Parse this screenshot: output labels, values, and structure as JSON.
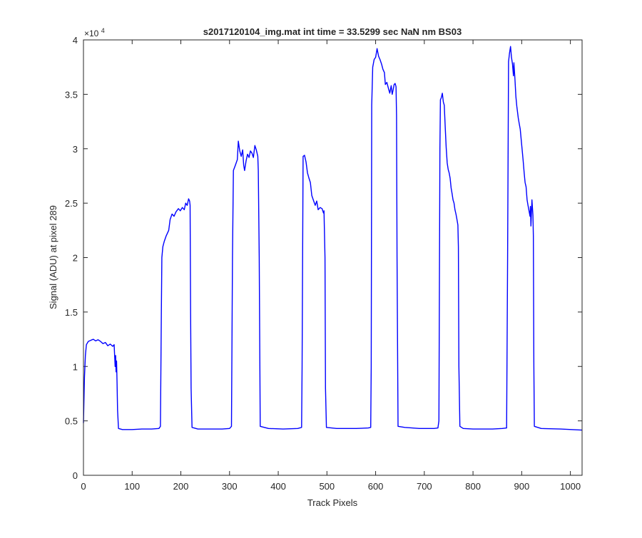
{
  "chart_data": {
    "type": "line",
    "title": "s2017120104_img.mat int time = 33.5299 sec  NaN nm BS03",
    "xlabel": "Track Pixels",
    "ylabel": "Signal (ADU) at pixel 289",
    "xlim": [
      0,
      1024
    ],
    "ylim": [
      0,
      40000
    ],
    "y_exponent_label": "×10",
    "y_exponent_power": "4",
    "xticks": [
      0,
      100,
      200,
      300,
      400,
      500,
      600,
      700,
      800,
      900,
      1000
    ],
    "xtick_labels": [
      "0",
      "100",
      "200",
      "300",
      "400",
      "500",
      "600",
      "700",
      "800",
      "900",
      "1000"
    ],
    "yticks": [
      0,
      5000,
      10000,
      15000,
      20000,
      25000,
      30000,
      35000,
      40000
    ],
    "ytick_labels": [
      "0",
      "0.5",
      "1",
      "1.5",
      "2",
      "2.5",
      "3",
      "3.5",
      "4"
    ],
    "grid": false,
    "line_color": "#0000ff",
    "series": [
      {
        "points": [
          [
            0,
            4800
          ],
          [
            2,
            9000
          ],
          [
            4,
            11000
          ],
          [
            6,
            12000
          ],
          [
            10,
            12300
          ],
          [
            15,
            12400
          ],
          [
            20,
            12500
          ],
          [
            25,
            12350
          ],
          [
            30,
            12450
          ],
          [
            35,
            12300
          ],
          [
            40,
            12100
          ],
          [
            45,
            12200
          ],
          [
            50,
            11900
          ],
          [
            55,
            12050
          ],
          [
            60,
            11850
          ],
          [
            63,
            12000
          ],
          [
            65,
            10000
          ],
          [
            66,
            11000
          ],
          [
            67,
            9500
          ],
          [
            68,
            10500
          ],
          [
            69,
            8500
          ],
          [
            70,
            6000
          ],
          [
            72,
            4300
          ],
          [
            80,
            4200
          ],
          [
            100,
            4200
          ],
          [
            120,
            4250
          ],
          [
            140,
            4250
          ],
          [
            155,
            4300
          ],
          [
            158,
            4500
          ],
          [
            160,
            15000
          ],
          [
            161,
            20000
          ],
          [
            163,
            21000
          ],
          [
            166,
            21500
          ],
          [
            170,
            22000
          ],
          [
            175,
            22500
          ],
          [
            178,
            23500
          ],
          [
            182,
            24000
          ],
          [
            186,
            23800
          ],
          [
            190,
            24200
          ],
          [
            195,
            24500
          ],
          [
            199,
            24300
          ],
          [
            203,
            24600
          ],
          [
            207,
            24400
          ],
          [
            210,
            25000
          ],
          [
            213,
            24800
          ],
          [
            216,
            25400
          ],
          [
            218,
            25200
          ],
          [
            219,
            24800
          ],
          [
            220,
            15000
          ],
          [
            221,
            8000
          ],
          [
            223,
            4400
          ],
          [
            235,
            4250
          ],
          [
            260,
            4250
          ],
          [
            285,
            4250
          ],
          [
            300,
            4300
          ],
          [
            304,
            4500
          ],
          [
            306,
            20000
          ],
          [
            308,
            28000
          ],
          [
            312,
            28500
          ],
          [
            316,
            29000
          ],
          [
            318,
            30700
          ],
          [
            321,
            29800
          ],
          [
            324,
            29300
          ],
          [
            327,
            29900
          ],
          [
            329,
            28500
          ],
          [
            331,
            28000
          ],
          [
            334,
            28900
          ],
          [
            337,
            29500
          ],
          [
            340,
            29200
          ],
          [
            343,
            29800
          ],
          [
            346,
            29600
          ],
          [
            349,
            29200
          ],
          [
            352,
            30300
          ],
          [
            355,
            29900
          ],
          [
            358,
            29300
          ],
          [
            359,
            28000
          ],
          [
            361,
            20000
          ],
          [
            363,
            4500
          ],
          [
            380,
            4300
          ],
          [
            410,
            4250
          ],
          [
            440,
            4300
          ],
          [
            448,
            4400
          ],
          [
            449,
            10000
          ],
          [
            451,
            29300
          ],
          [
            454,
            29400
          ],
          [
            457,
            28800
          ],
          [
            460,
            27800
          ],
          [
            463,
            27300
          ],
          [
            466,
            26900
          ],
          [
            469,
            25700
          ],
          [
            472,
            25300
          ],
          [
            476,
            24800
          ],
          [
            479,
            25200
          ],
          [
            482,
            24400
          ],
          [
            486,
            24600
          ],
          [
            490,
            24500
          ],
          [
            493,
            24100
          ],
          [
            494,
            24300
          ],
          [
            496,
            20000
          ],
          [
            497,
            8000
          ],
          [
            499,
            4400
          ],
          [
            520,
            4300
          ],
          [
            560,
            4300
          ],
          [
            585,
            4350
          ],
          [
            590,
            4400
          ],
          [
            591,
            10000
          ],
          [
            592,
            34000
          ],
          [
            594,
            37500
          ],
          [
            597,
            38200
          ],
          [
            600,
            38400
          ],
          [
            603,
            39200
          ],
          [
            606,
            38500
          ],
          [
            609,
            38200
          ],
          [
            612,
            37800
          ],
          [
            615,
            37300
          ],
          [
            618,
            37000
          ],
          [
            620,
            35900
          ],
          [
            623,
            36100
          ],
          [
            626,
            35600
          ],
          [
            629,
            35100
          ],
          [
            632,
            35800
          ],
          [
            634,
            35000
          ],
          [
            636,
            35400
          ],
          [
            638,
            35900
          ],
          [
            640,
            36000
          ],
          [
            642,
            35700
          ],
          [
            643,
            33000
          ],
          [
            644,
            20000
          ],
          [
            646,
            4500
          ],
          [
            660,
            4400
          ],
          [
            690,
            4300
          ],
          [
            720,
            4300
          ],
          [
            728,
            4350
          ],
          [
            730,
            5000
          ],
          [
            732,
            30000
          ],
          [
            733,
            34500
          ],
          [
            735,
            34700
          ],
          [
            737,
            35100
          ],
          [
            739,
            34300
          ],
          [
            741,
            34000
          ],
          [
            743,
            31900
          ],
          [
            745,
            30100
          ],
          [
            747,
            28700
          ],
          [
            749,
            28100
          ],
          [
            751,
            27800
          ],
          [
            753,
            27300
          ],
          [
            755,
            26400
          ],
          [
            757,
            25900
          ],
          [
            759,
            25300
          ],
          [
            761,
            25000
          ],
          [
            763,
            24400
          ],
          [
            765,
            24000
          ],
          [
            767,
            23500
          ],
          [
            769,
            23000
          ],
          [
            770,
            21000
          ],
          [
            771,
            10000
          ],
          [
            773,
            4500
          ],
          [
            780,
            4300
          ],
          [
            800,
            4250
          ],
          [
            840,
            4250
          ],
          [
            860,
            4300
          ],
          [
            869,
            4350
          ],
          [
            871,
            20000
          ],
          [
            873,
            38000
          ],
          [
            875,
            38800
          ],
          [
            877,
            39400
          ],
          [
            879,
            38400
          ],
          [
            881,
            37800
          ],
          [
            883,
            36700
          ],
          [
            884,
            37900
          ],
          [
            886,
            36500
          ],
          [
            888,
            34800
          ],
          [
            890,
            33900
          ],
          [
            893,
            32800
          ],
          [
            895,
            32300
          ],
          [
            897,
            31800
          ],
          [
            899,
            30800
          ],
          [
            901,
            29900
          ],
          [
            903,
            28900
          ],
          [
            905,
            27800
          ],
          [
            907,
            26900
          ],
          [
            909,
            26500
          ],
          [
            911,
            25300
          ],
          [
            913,
            24800
          ],
          [
            915,
            24300
          ],
          [
            917,
            23800
          ],
          [
            918,
            24700
          ],
          [
            919,
            22900
          ],
          [
            921,
            25300
          ],
          [
            923,
            23900
          ],
          [
            924,
            22000
          ],
          [
            925,
            10000
          ],
          [
            926,
            4500
          ],
          [
            940,
            4300
          ],
          [
            980,
            4250
          ],
          [
            1024,
            4150
          ]
        ]
      }
    ]
  }
}
